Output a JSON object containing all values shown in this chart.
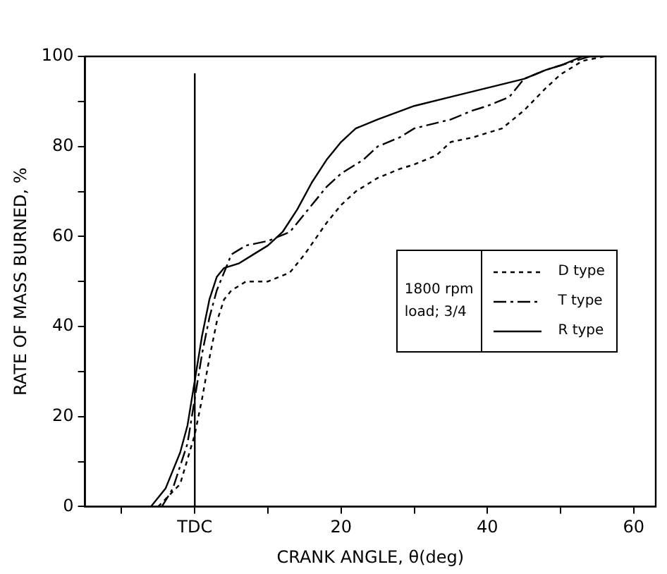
{
  "chart_data": {
    "type": "line",
    "xlabel": "CRANK ANGLE, θ(deg)",
    "ylabel": "RATE OF MASS BURNED, %",
    "legend_title": "1800 rpm\nload; 3/4",
    "legend": "right",
    "grid": false,
    "marker": "none",
    "xlim": [
      -15,
      63
    ],
    "xticks": [
      {
        "value": -10,
        "label": null
      },
      {
        "value": 0,
        "label": "TDC"
      },
      {
        "value": 10,
        "label": null
      },
      20,
      {
        "value": 30,
        "label": null
      },
      40,
      {
        "value": 50,
        "label": null
      },
      60
    ],
    "ylim": [
      0,
      100
    ],
    "yticks": [
      0,
      {
        "value": 10,
        "label": null
      },
      20,
      {
        "value": 30,
        "label": null
      },
      40,
      {
        "value": 50,
        "label": null
      },
      60,
      {
        "value": 70,
        "label": null
      },
      80,
      {
        "value": 90,
        "label": null
      },
      100
    ],
    "ref_lines": [
      {
        "axis": "x",
        "value": 0,
        "color": "#000000"
      }
    ],
    "series": [
      {
        "name": "D type",
        "color": "#000000",
        "line_style": "dotted",
        "x": [
          -5,
          -2,
          0,
          1,
          2,
          3,
          4,
          5,
          7,
          10,
          13,
          15,
          18,
          20,
          22,
          25,
          28,
          30,
          33,
          35,
          38,
          40,
          42,
          45,
          48,
          50,
          53,
          56
        ],
        "values": [
          0,
          5,
          16,
          24,
          33,
          41,
          46,
          48,
          50,
          50,
          52,
          56,
          63,
          67,
          70,
          73,
          75,
          76,
          78,
          81,
          82,
          83,
          84,
          88,
          93,
          96,
          99,
          100
        ]
      },
      {
        "name": "T type",
        "color": "#000000",
        "line_style": "dashed",
        "x": [
          -4.5,
          -3,
          -1,
          0,
          1,
          2,
          3,
          4,
          5,
          7,
          10,
          13,
          15,
          18,
          20,
          23,
          25,
          28,
          30,
          35,
          38,
          40,
          43,
          45,
          48,
          50,
          52,
          54
        ],
        "values": [
          0,
          4,
          14,
          24,
          34,
          42,
          48,
          52,
          56,
          58,
          59,
          61,
          65,
          71,
          74,
          77,
          80,
          82,
          84,
          86,
          88,
          89,
          91,
          95,
          97,
          98,
          99,
          100
        ]
      },
      {
        "name": "R type",
        "color": "#000000",
        "line_style": "solid",
        "x": [
          -6,
          -4,
          -2,
          -1,
          0,
          1,
          2,
          3,
          4,
          6,
          8,
          10,
          12,
          14,
          16,
          18,
          20,
          22,
          25,
          30,
          35,
          40,
          45,
          48,
          50,
          53,
          55
        ],
        "values": [
          0,
          4,
          12,
          18,
          28,
          38,
          46,
          51,
          53,
          54,
          56,
          58,
          61,
          66,
          72,
          77,
          81,
          84,
          86,
          89,
          91,
          93,
          95,
          97,
          98,
          100,
          100
        ]
      }
    ]
  }
}
